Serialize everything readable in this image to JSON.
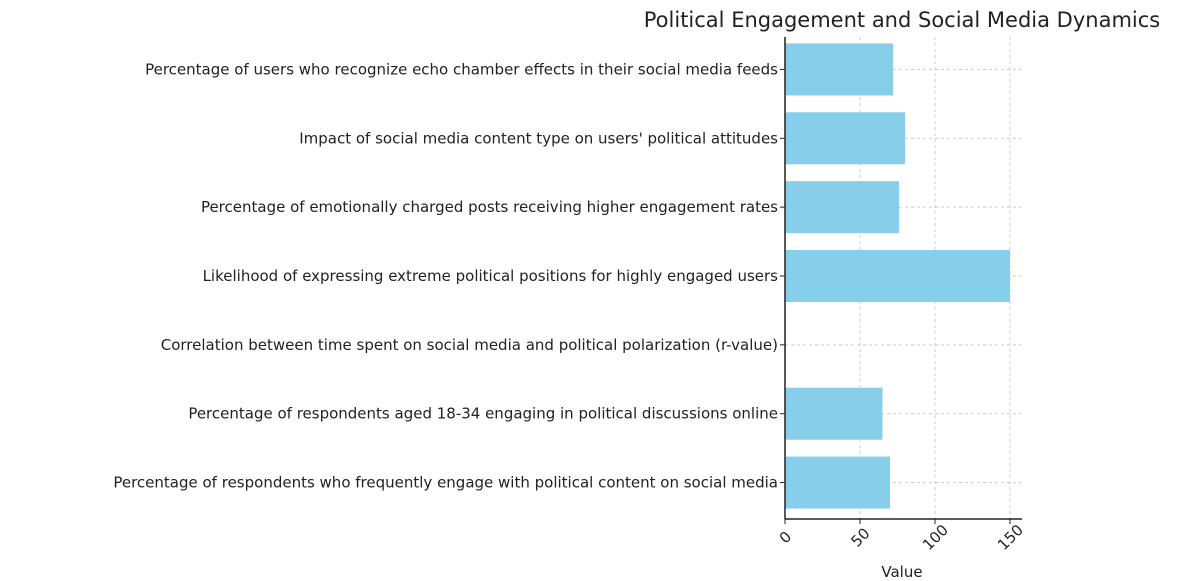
{
  "chart_data": {
    "type": "bar",
    "orientation": "horizontal",
    "title": "Political Engagement and Social Media Dynamics",
    "xlabel": "Value",
    "ylabel": "",
    "xlim": [
      0,
      158
    ],
    "xticks": [
      0,
      50,
      100,
      150
    ],
    "grid": true,
    "bar_color": "#87ceeb",
    "categories": [
      "Percentage of users who recognize echo chamber effects in their social media feeds",
      "Impact of social media content type on users' political attitudes",
      "Percentage of emotionally charged posts receiving higher engagement rates",
      "Likelihood of expressing extreme political positions for highly engaged users",
      "Correlation between time spent on social media and political polarization (r-value)",
      "Percentage of respondents aged 18-34 engaging in political discussions online",
      "Percentage of respondents who frequently engage with political content on social media"
    ],
    "values": [
      72,
      80,
      76,
      150,
      0.45,
      65,
      70
    ]
  }
}
